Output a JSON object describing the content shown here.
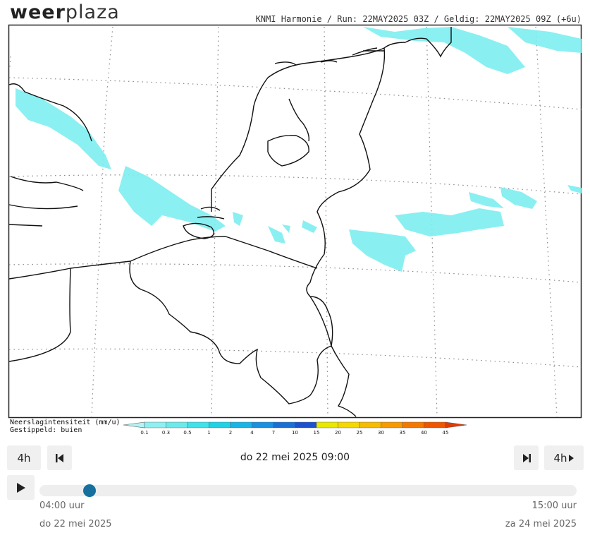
{
  "header": {
    "logo_part1": "weer",
    "logo_part2": "plaza",
    "info": "KNMI Harmonie / Run: 22MAY2025 03Z / Geldig: 22MAY2025 09Z (+6u)"
  },
  "legend": {
    "title": "Neerslagintensiteit (mm/u)",
    "subtitle": "Gestippeld: buien",
    "labels": [
      "0.1",
      "0.3",
      "0.5",
      "1",
      "2",
      "4",
      "7",
      "10",
      "15",
      "20",
      "25",
      "30",
      "35",
      "40",
      "45"
    ],
    "colors": [
      "#b4f4f4",
      "#8ef0f0",
      "#6ceaea",
      "#3ee3ea",
      "#1fd2e6",
      "#18b4e6",
      "#1990e0",
      "#1a6fd6",
      "#1d4fcf",
      "#e8e800",
      "#f5d800",
      "#f7bb00",
      "#f79a00",
      "#f47800",
      "#ee5600",
      "#e43a00"
    ]
  },
  "controls": {
    "back_step": "4h",
    "current_time": "do 22 mei 2025 09:00",
    "forward_step": "4h",
    "start_time": "04:00 uur",
    "end_time": "15:00 uur",
    "start_date": "do 22 mei 2025",
    "end_date": "za 24 mei 2025"
  }
}
